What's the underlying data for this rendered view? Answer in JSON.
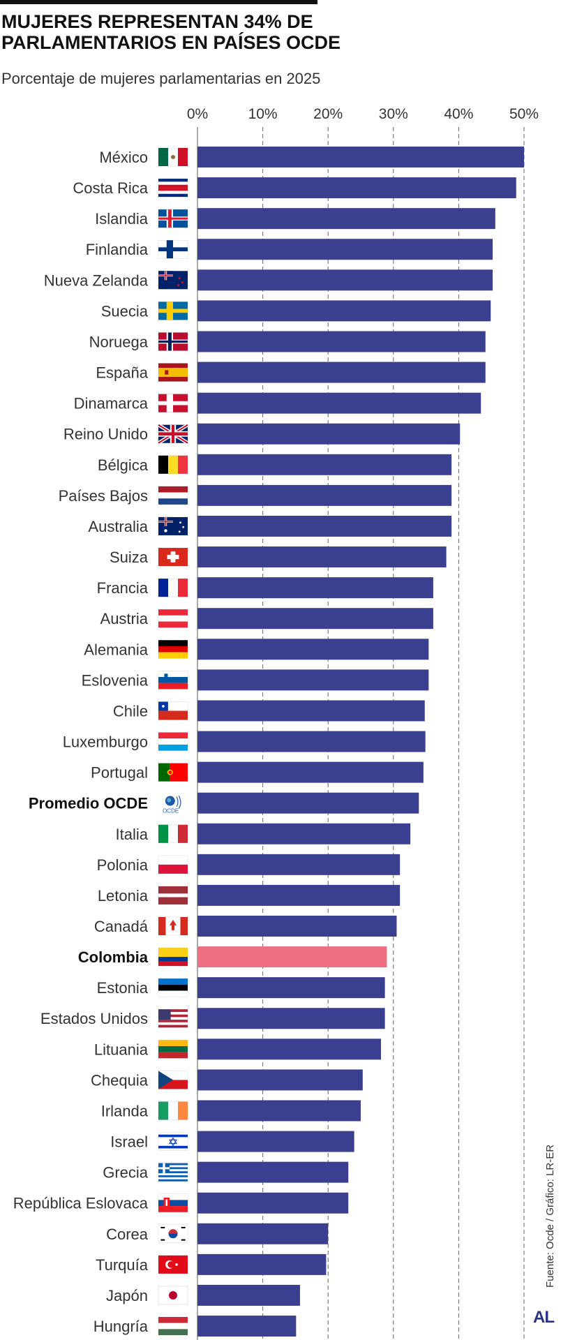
{
  "title": "MUJERES REPRESENTAN 34% DE PARLAMENTARIOS EN PAÍSES OCDE",
  "subtitle": "Porcentaje de mujeres parlamentarias en 2025",
  "source": "Fuente: Ocde / Gráfico: LR-ER",
  "logo": "AL",
  "colors": {
    "bar": "#3b3f8f",
    "highlight": "#ef6f82",
    "grid": "#666666"
  },
  "chart_data": {
    "type": "bar",
    "orientation": "horizontal",
    "title": "MUJERES REPRESENTAN 34% DE PARLAMENTARIOS EN PAÍSES OCDE",
    "subtitle": "Porcentaje de mujeres parlamentarias en 2025",
    "xlim": [
      0,
      50
    ],
    "x_ticks": [
      0,
      10,
      20,
      30,
      40,
      50
    ],
    "x_tick_labels": [
      "0%",
      "10%",
      "20%",
      "30%",
      "40%",
      "50%"
    ],
    "grid": "vertical-dashed",
    "categories": [
      "México",
      "Costa Rica",
      "Islandia",
      "Finlandia",
      "Nueva Zelanda",
      "Suecia",
      "Noruega",
      "España",
      "Dinamarca",
      "Reino Unido",
      "Bélgica",
      "Países Bajos",
      "Australia",
      "Suiza",
      "Francia",
      "Austria",
      "Alemania",
      "Eslovenia",
      "Chile",
      "Luxemburgo",
      "Portugal",
      "Promedio OCDE",
      "Italia",
      "Polonia",
      "Letonia",
      "Canadá",
      "Colombia",
      "Estonia",
      "Estados Unidos",
      "Lituania",
      "Chequia",
      "Irlanda",
      "Israel",
      "Grecia",
      "República Eslovaca",
      "Corea",
      "Turquía",
      "Japón",
      "Hungría"
    ],
    "values": [
      50.0,
      48.8,
      45.6,
      45.2,
      45.2,
      44.9,
      44.1,
      44.1,
      43.4,
      40.2,
      38.9,
      38.9,
      38.9,
      38.1,
      36.1,
      36.1,
      35.4,
      35.4,
      34.8,
      34.9,
      34.6,
      33.9,
      32.6,
      31.0,
      31.0,
      30.5,
      29.0,
      28.7,
      28.7,
      28.1,
      25.3,
      25.0,
      24.0,
      23.1,
      23.1,
      20.0,
      19.7,
      15.7,
      15.1
    ],
    "highlight": [
      "Colombia"
    ],
    "bold_labels": [
      "Promedio OCDE",
      "Colombia"
    ],
    "flags": [
      "mx",
      "cr",
      "is",
      "fi",
      "nz",
      "se",
      "no",
      "es",
      "dk",
      "gb",
      "be",
      "nl",
      "au",
      "ch",
      "fr",
      "at",
      "de",
      "si",
      "cl",
      "lu",
      "pt",
      "oecd",
      "it",
      "pl",
      "lv",
      "ca",
      "co",
      "ee",
      "us",
      "lt",
      "cz",
      "ie",
      "il",
      "gr",
      "sk",
      "kr",
      "tr",
      "jp",
      "hu"
    ]
  }
}
